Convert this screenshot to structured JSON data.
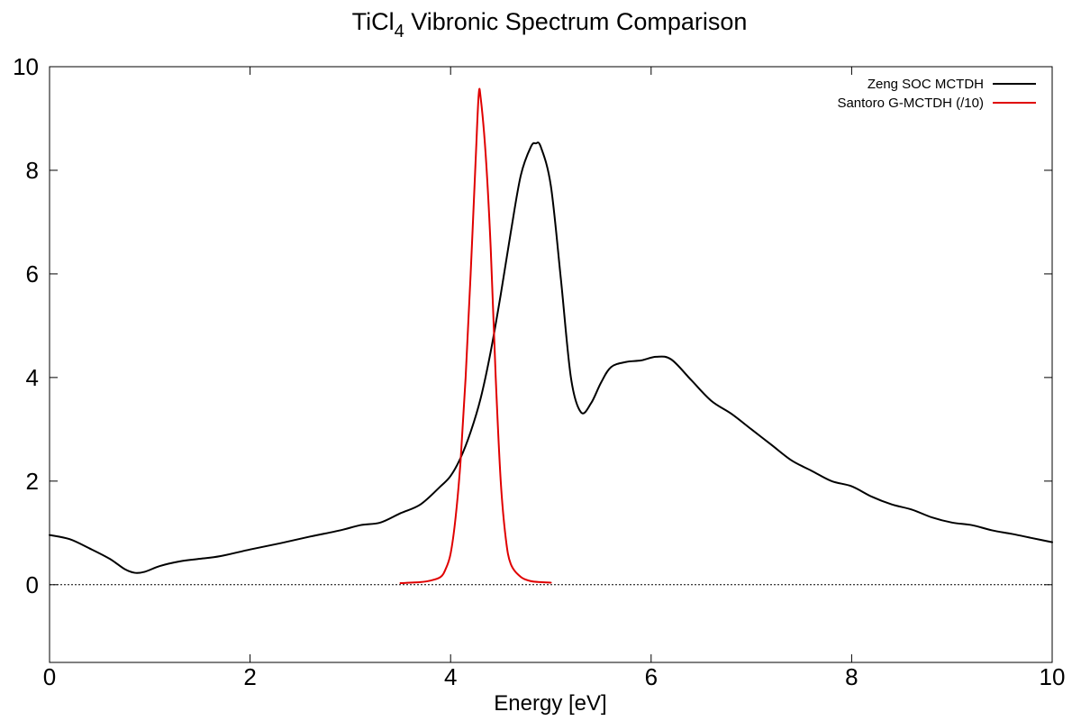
{
  "chart_data": {
    "type": "line",
    "title": {
      "prefix": "TiCl",
      "subscript": "4",
      "suffix": " Vibronic Spectrum Comparison"
    },
    "xlabel": "Energy [eV]",
    "ylabel": "",
    "xlim": [
      0,
      10
    ],
    "ylim": [
      -1.5,
      10
    ],
    "x_ticks": [
      0,
      2,
      4,
      6,
      8,
      10
    ],
    "y_ticks": [
      0,
      2,
      4,
      6,
      8,
      10
    ],
    "x_tick_labels": [
      "0",
      "2",
      "4",
      "6",
      "8",
      "10"
    ],
    "y_tick_labels": [
      "0",
      "2",
      "4",
      "6",
      "8",
      "10"
    ],
    "grid": false,
    "zero_line": true,
    "legend_position": "top-right",
    "series": [
      {
        "name": "Zeng SOC MCTDH",
        "color": "#000000",
        "points": [
          [
            0.0,
            0.96
          ],
          [
            0.2,
            0.88
          ],
          [
            0.4,
            0.7
          ],
          [
            0.6,
            0.5
          ],
          [
            0.75,
            0.3
          ],
          [
            0.85,
            0.23
          ],
          [
            0.95,
            0.25
          ],
          [
            1.1,
            0.36
          ],
          [
            1.3,
            0.45
          ],
          [
            1.5,
            0.5
          ],
          [
            1.7,
            0.55
          ],
          [
            2.0,
            0.68
          ],
          [
            2.3,
            0.8
          ],
          [
            2.6,
            0.93
          ],
          [
            2.9,
            1.05
          ],
          [
            3.1,
            1.15
          ],
          [
            3.3,
            1.2
          ],
          [
            3.5,
            1.38
          ],
          [
            3.7,
            1.55
          ],
          [
            3.9,
            1.9
          ],
          [
            4.0,
            2.1
          ],
          [
            4.1,
            2.45
          ],
          [
            4.2,
            2.95
          ],
          [
            4.3,
            3.6
          ],
          [
            4.4,
            4.5
          ],
          [
            4.5,
            5.6
          ],
          [
            4.6,
            6.8
          ],
          [
            4.7,
            7.9
          ],
          [
            4.8,
            8.45
          ],
          [
            4.85,
            8.52
          ],
          [
            4.9,
            8.45
          ],
          [
            5.0,
            7.7
          ],
          [
            5.1,
            5.9
          ],
          [
            5.2,
            4.0
          ],
          [
            5.3,
            3.33
          ],
          [
            5.4,
            3.5
          ],
          [
            5.5,
            3.9
          ],
          [
            5.6,
            4.2
          ],
          [
            5.75,
            4.3
          ],
          [
            5.9,
            4.33
          ],
          [
            6.05,
            4.4
          ],
          [
            6.2,
            4.35
          ],
          [
            6.4,
            3.95
          ],
          [
            6.6,
            3.55
          ],
          [
            6.8,
            3.3
          ],
          [
            7.0,
            3.0
          ],
          [
            7.2,
            2.7
          ],
          [
            7.4,
            2.4
          ],
          [
            7.6,
            2.2
          ],
          [
            7.8,
            2.0
          ],
          [
            8.0,
            1.9
          ],
          [
            8.2,
            1.7
          ],
          [
            8.4,
            1.55
          ],
          [
            8.6,
            1.45
          ],
          [
            8.8,
            1.3
          ],
          [
            9.0,
            1.2
          ],
          [
            9.2,
            1.15
          ],
          [
            9.4,
            1.05
          ],
          [
            9.6,
            0.98
          ],
          [
            9.8,
            0.9
          ],
          [
            10.0,
            0.82
          ]
        ]
      },
      {
        "name": "Santoro G-MCTDH (/10)",
        "color": "#e00000",
        "points": [
          [
            3.5,
            0.03
          ],
          [
            3.7,
            0.05
          ],
          [
            3.8,
            0.08
          ],
          [
            3.9,
            0.15
          ],
          [
            3.95,
            0.3
          ],
          [
            4.0,
            0.6
          ],
          [
            4.05,
            1.3
          ],
          [
            4.1,
            2.4
          ],
          [
            4.15,
            4.0
          ],
          [
            4.2,
            6.0
          ],
          [
            4.25,
            8.2
          ],
          [
            4.28,
            9.45
          ],
          [
            4.3,
            9.4
          ],
          [
            4.35,
            8.3
          ],
          [
            4.4,
            6.5
          ],
          [
            4.45,
            4.0
          ],
          [
            4.5,
            2.0
          ],
          [
            4.55,
            0.9
          ],
          [
            4.6,
            0.4
          ],
          [
            4.7,
            0.15
          ],
          [
            4.8,
            0.07
          ],
          [
            4.9,
            0.05
          ],
          [
            5.0,
            0.04
          ]
        ]
      }
    ]
  }
}
